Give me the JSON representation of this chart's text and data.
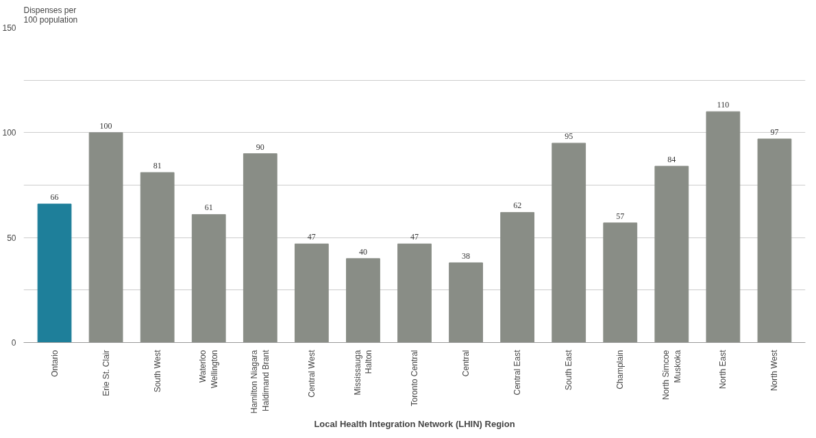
{
  "chart_data": {
    "type": "bar",
    "ylabel": "Dispenses per\n100 population",
    "xlabel": "Local Health Integration Network (LHIN) Region",
    "categories": [
      "Ontario",
      "Erie St. Clair",
      "South West",
      "Waterloo\nWellington",
      "Hamilton Niagara\nHaldimand Brant",
      "Central West",
      "Mississauga\nHalton",
      "Toronto Central",
      "Central",
      "Central East",
      "South East",
      "Champlain",
      "North Simcoe\nMuskoka",
      "North East",
      "North West"
    ],
    "values": [
      66,
      100,
      81,
      61,
      90,
      47,
      40,
      47,
      38,
      62,
      95,
      57,
      84,
      110,
      97
    ],
    "colors": [
      "#1e7f9a",
      "#898d86",
      "#898d86",
      "#898d86",
      "#898d86",
      "#898d86",
      "#898d86",
      "#898d86",
      "#898d86",
      "#898d86",
      "#898d86",
      "#898d86",
      "#898d86",
      "#898d86",
      "#898d86"
    ],
    "ylim": [
      0,
      150
    ],
    "yticks": [
      0,
      {
        "value": 25,
        "label": null
      },
      50,
      {
        "value": 75,
        "label": null
      },
      100,
      {
        "value": 125,
        "label": null
      },
      150
    ],
    "grid": "y",
    "data_labels": true
  }
}
